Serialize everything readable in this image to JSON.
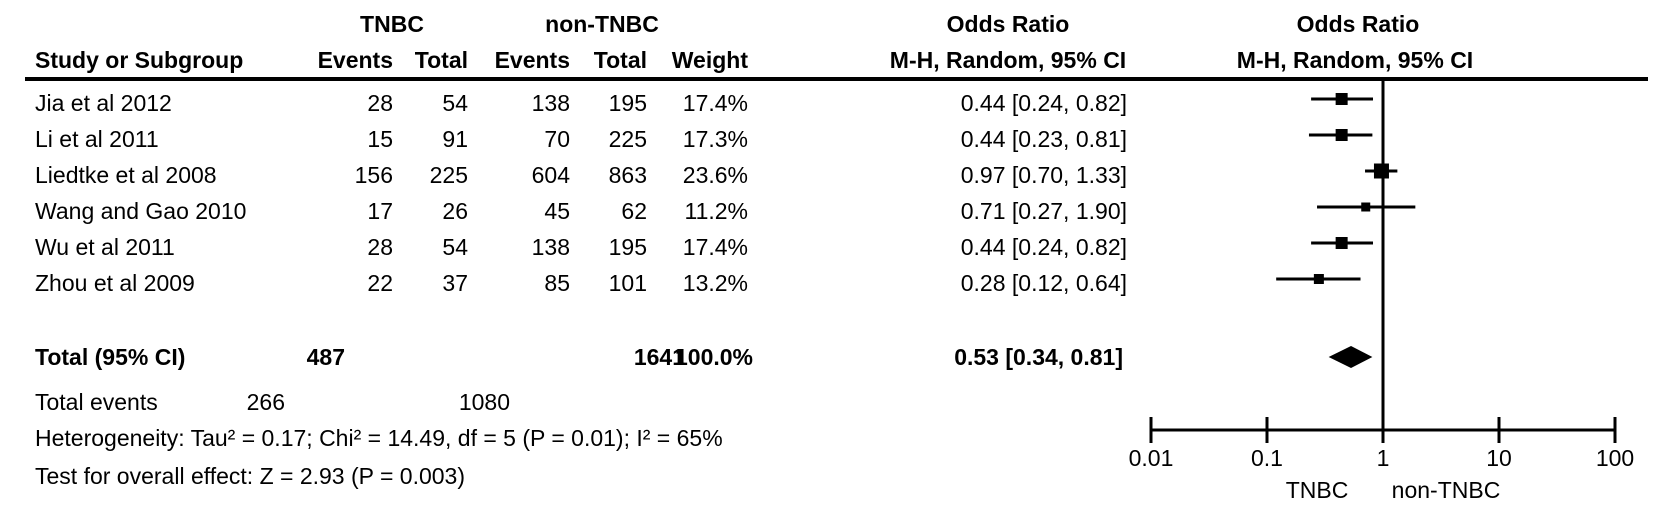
{
  "header": {
    "tnbc": "TNBC",
    "non_tnbc": "non-TNBC",
    "odds_ratio": "Odds Ratio",
    "study": "Study or Subgroup",
    "events": "Events",
    "total": "Total",
    "weight": "Weight",
    "mh_random": "M-H, Random, 95% CI"
  },
  "chart_data": {
    "type": "forest",
    "effect_measure": "Odds Ratio",
    "method": "M-H, Random, 95% CI",
    "x_axis": {
      "scale": "log",
      "min": 0.01,
      "max": 100,
      "ticks": [
        "0.01",
        "0.1",
        "1",
        "10",
        "100"
      ],
      "favours_left": "TNBC",
      "favours_right": "non-TNBC"
    },
    "studies": [
      {
        "name": "Jia et al 2012",
        "tnbc_events": 28,
        "tnbc_total": 54,
        "non_tnbc_events": 138,
        "non_tnbc_total": 195,
        "weight": "17.4%",
        "weight_pct": 17.4,
        "or": 0.44,
        "ci_low": 0.24,
        "ci_high": 0.82,
        "or_label": "0.44 [0.24, 0.82]"
      },
      {
        "name": "Li et al 2011",
        "tnbc_events": 15,
        "tnbc_total": 91,
        "non_tnbc_events": 70,
        "non_tnbc_total": 225,
        "weight": "17.3%",
        "weight_pct": 17.3,
        "or": 0.44,
        "ci_low": 0.23,
        "ci_high": 0.81,
        "or_label": "0.44 [0.23, 0.81]"
      },
      {
        "name": "Liedtke et al 2008",
        "tnbc_events": 156,
        "tnbc_total": 225,
        "non_tnbc_events": 604,
        "non_tnbc_total": 863,
        "weight": "23.6%",
        "weight_pct": 23.6,
        "or": 0.97,
        "ci_low": 0.7,
        "ci_high": 1.33,
        "or_label": "0.97 [0.70, 1.33]"
      },
      {
        "name": "Wang and Gao 2010",
        "tnbc_events": 17,
        "tnbc_total": 26,
        "non_tnbc_events": 45,
        "non_tnbc_total": 62,
        "weight": "11.2%",
        "weight_pct": 11.2,
        "or": 0.71,
        "ci_low": 0.27,
        "ci_high": 1.9,
        "or_label": "0.71 [0.27, 1.90]"
      },
      {
        "name": "Wu et al 2011",
        "tnbc_events": 28,
        "tnbc_total": 54,
        "non_tnbc_events": 138,
        "non_tnbc_total": 195,
        "weight": "17.4%",
        "weight_pct": 17.4,
        "or": 0.44,
        "ci_low": 0.24,
        "ci_high": 0.82,
        "or_label": "0.44 [0.24, 0.82]"
      },
      {
        "name": "Zhou et al 2009",
        "tnbc_events": 22,
        "tnbc_total": 37,
        "non_tnbc_events": 85,
        "non_tnbc_total": 101,
        "weight": "13.2%",
        "weight_pct": 13.2,
        "or": 0.28,
        "ci_low": 0.12,
        "ci_high": 0.64,
        "or_label": "0.28 [0.12, 0.64]"
      }
    ],
    "total": {
      "label": "Total (95% CI)",
      "tnbc_total": 487,
      "non_tnbc_total": 1641,
      "weight": "100.0%",
      "or": 0.53,
      "ci_low": 0.34,
      "ci_high": 0.81,
      "or_label": "0.53 [0.34, 0.81]"
    },
    "total_events": {
      "label": "Total events",
      "tnbc": 266,
      "non_tnbc": 1080
    },
    "heterogeneity": "Heterogeneity: Tau² = 0.17; Chi² = 14.49, df = 5 (P = 0.01); I² = 65%",
    "overall_effect": "Test for overall effect: Z = 2.93 (P = 0.003)"
  }
}
